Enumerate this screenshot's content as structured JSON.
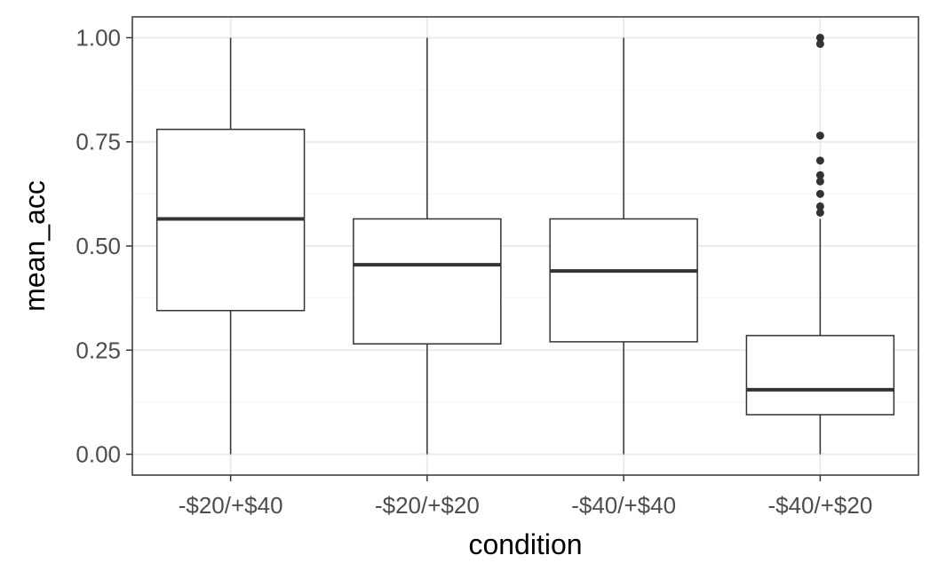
{
  "chart_data": {
    "type": "boxplot",
    "title": "",
    "xlabel": "condition",
    "ylabel": "mean_acc",
    "ylim": [
      -0.05,
      1.05
    ],
    "yticks": [
      0,
      0.25,
      0.5,
      0.75,
      1.0
    ],
    "ytick_labels": [
      "0.00",
      "0.25",
      "0.50",
      "0.75",
      "1.00"
    ],
    "grid": true,
    "theme": "bw",
    "colors": {
      "box_outline": "#333333",
      "grid_major": "#ebebeb",
      "grid_minor": "#f5f5f5",
      "panel_border": "#333333",
      "tick_text": "#4d4d4d",
      "axis_title": "#000000"
    },
    "categories": [
      "-$20/+$40",
      "-$20/+$20",
      "-$40/+$40",
      "-$40/+$20"
    ],
    "boxes": [
      {
        "category": "-$20/+$40",
        "whisker_low": 0.0,
        "q1": 0.345,
        "median": 0.565,
        "q3": 0.78,
        "whisker_high": 1.0,
        "outliers": []
      },
      {
        "category": "-$20/+$20",
        "whisker_low": 0.0,
        "q1": 0.265,
        "median": 0.455,
        "q3": 0.565,
        "whisker_high": 1.0,
        "outliers": []
      },
      {
        "category": "-$40/+$40",
        "whisker_low": 0.0,
        "q1": 0.27,
        "median": 0.44,
        "q3": 0.565,
        "whisker_high": 1.0,
        "outliers": []
      },
      {
        "category": "-$40/+$20",
        "whisker_low": 0.0,
        "q1": 0.095,
        "median": 0.155,
        "q3": 0.285,
        "whisker_high": 0.565,
        "outliers": [
          0.58,
          0.595,
          0.625,
          0.655,
          0.67,
          0.705,
          0.765,
          0.985,
          1.0
        ]
      }
    ]
  }
}
